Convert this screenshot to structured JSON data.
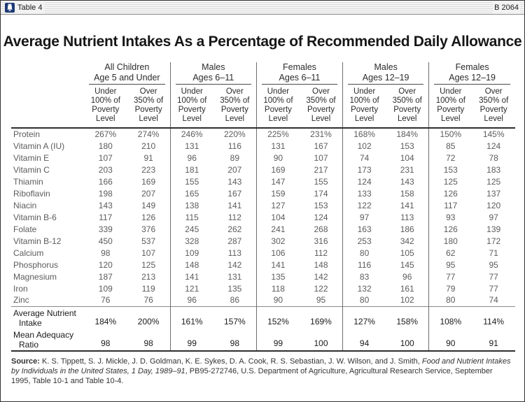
{
  "window": {
    "title": "Table 4",
    "code": "B 2064",
    "icon": "bell-icon",
    "icon_color": "#1d3a75"
  },
  "title": "Average Nutrient Intakes As a Percentage of Recommended Daily Allowance",
  "colors": {
    "body_text": "#5c5c5c",
    "header_text": "#2b2b2b",
    "rule_dark": "#2e2e2e",
    "rule_light": "#8a8a8a",
    "separator": "#6e6e6e"
  },
  "table": {
    "groups": [
      {
        "line1": "All Children",
        "line2": "Age 5 and Under"
      },
      {
        "line1": "Males",
        "line2": "Ages 6–11"
      },
      {
        "line1": "Females",
        "line2": "Ages 6–11"
      },
      {
        "line1": "Males",
        "line2": "Ages 12–19"
      },
      {
        "line1": "Females",
        "line2": "Ages 12–19"
      }
    ],
    "subheaders": [
      {
        "lines": [
          "Under",
          "100% of",
          "Poverty",
          "Level"
        ]
      },
      {
        "lines": [
          "Over",
          "350% of",
          "Poverty",
          "Level"
        ]
      }
    ],
    "rows": [
      {
        "label": "Protein",
        "values": [
          "267%",
          "274%",
          "246%",
          "220%",
          "225%",
          "231%",
          "168%",
          "184%",
          "150%",
          "145%"
        ]
      },
      {
        "label": "Vitamin A (IU)",
        "values": [
          "180",
          "210",
          "131",
          "116",
          "131",
          "167",
          "102",
          "153",
          "85",
          "124"
        ]
      },
      {
        "label": "Vitamin E",
        "values": [
          "107",
          "91",
          "96",
          "89",
          "90",
          "107",
          "74",
          "104",
          "72",
          "78"
        ]
      },
      {
        "label": "Vitamin C",
        "values": [
          "203",
          "223",
          "181",
          "207",
          "169",
          "217",
          "173",
          "231",
          "153",
          "183"
        ]
      },
      {
        "label": "Thiamin",
        "values": [
          "166",
          "169",
          "155",
          "143",
          "147",
          "155",
          "124",
          "143",
          "125",
          "125"
        ]
      },
      {
        "label": "Riboflavin",
        "values": [
          "198",
          "207",
          "165",
          "167",
          "159",
          "174",
          "133",
          "158",
          "126",
          "137"
        ]
      },
      {
        "label": "Niacin",
        "values": [
          "143",
          "149",
          "138",
          "141",
          "127",
          "153",
          "122",
          "141",
          "117",
          "120"
        ]
      },
      {
        "label": "Vitamin B-6",
        "values": [
          "117",
          "126",
          "115",
          "112",
          "104",
          "124",
          "97",
          "113",
          "93",
          "97"
        ]
      },
      {
        "label": "Folate",
        "values": [
          "339",
          "376",
          "245",
          "262",
          "241",
          "268",
          "163",
          "186",
          "126",
          "139"
        ]
      },
      {
        "label": "Vitamin B-12",
        "values": [
          "450",
          "537",
          "328",
          "287",
          "302",
          "316",
          "253",
          "342",
          "180",
          "172"
        ]
      },
      {
        "label": "Calcium",
        "values": [
          "98",
          "107",
          "109",
          "113",
          "106",
          "112",
          "80",
          "105",
          "62",
          "71"
        ]
      },
      {
        "label": "Phosphorus",
        "values": [
          "120",
          "125",
          "148",
          "142",
          "141",
          "148",
          "116",
          "145",
          "95",
          "95"
        ]
      },
      {
        "label": "Magnesium",
        "values": [
          "187",
          "213",
          "141",
          "131",
          "135",
          "142",
          "83",
          "96",
          "77",
          "77"
        ]
      },
      {
        "label": "Iron",
        "values": [
          "109",
          "119",
          "121",
          "135",
          "118",
          "122",
          "132",
          "161",
          "79",
          "77"
        ]
      },
      {
        "label": "Zinc",
        "values": [
          "76",
          "76",
          "96",
          "86",
          "90",
          "95",
          "80",
          "102",
          "80",
          "74"
        ]
      }
    ],
    "summary_rows": [
      {
        "label_line1": "Average Nutrient",
        "label_line2": "Intake",
        "values": [
          "184%",
          "200%",
          "161%",
          "157%",
          "152%",
          "169%",
          "127%",
          "158%",
          "108%",
          "114%"
        ]
      },
      {
        "label_line1": "Mean Adequacy",
        "label_line2": "Ratio",
        "values": [
          "98",
          "98",
          "99",
          "98",
          "99",
          "100",
          "94",
          "100",
          "90",
          "91"
        ]
      }
    ]
  },
  "source": {
    "label": "Source: ",
    "text_before_italic": "K. S. Tippett, S. J. Mickle, J. D. Goldman, K. E. Sykes, D. A. Cook, R. S. Sebastian, J. W. Wilson, and J. Smith, ",
    "italic": "Food and Nutrient Intakes by Individuals in the United States, 1 Day, 1989–91",
    "text_after_italic": ", PB95-272746, U.S. Department of Agriculture, Agricultural Research Service, September 1995, Table 10-1 and Table 10-4."
  }
}
